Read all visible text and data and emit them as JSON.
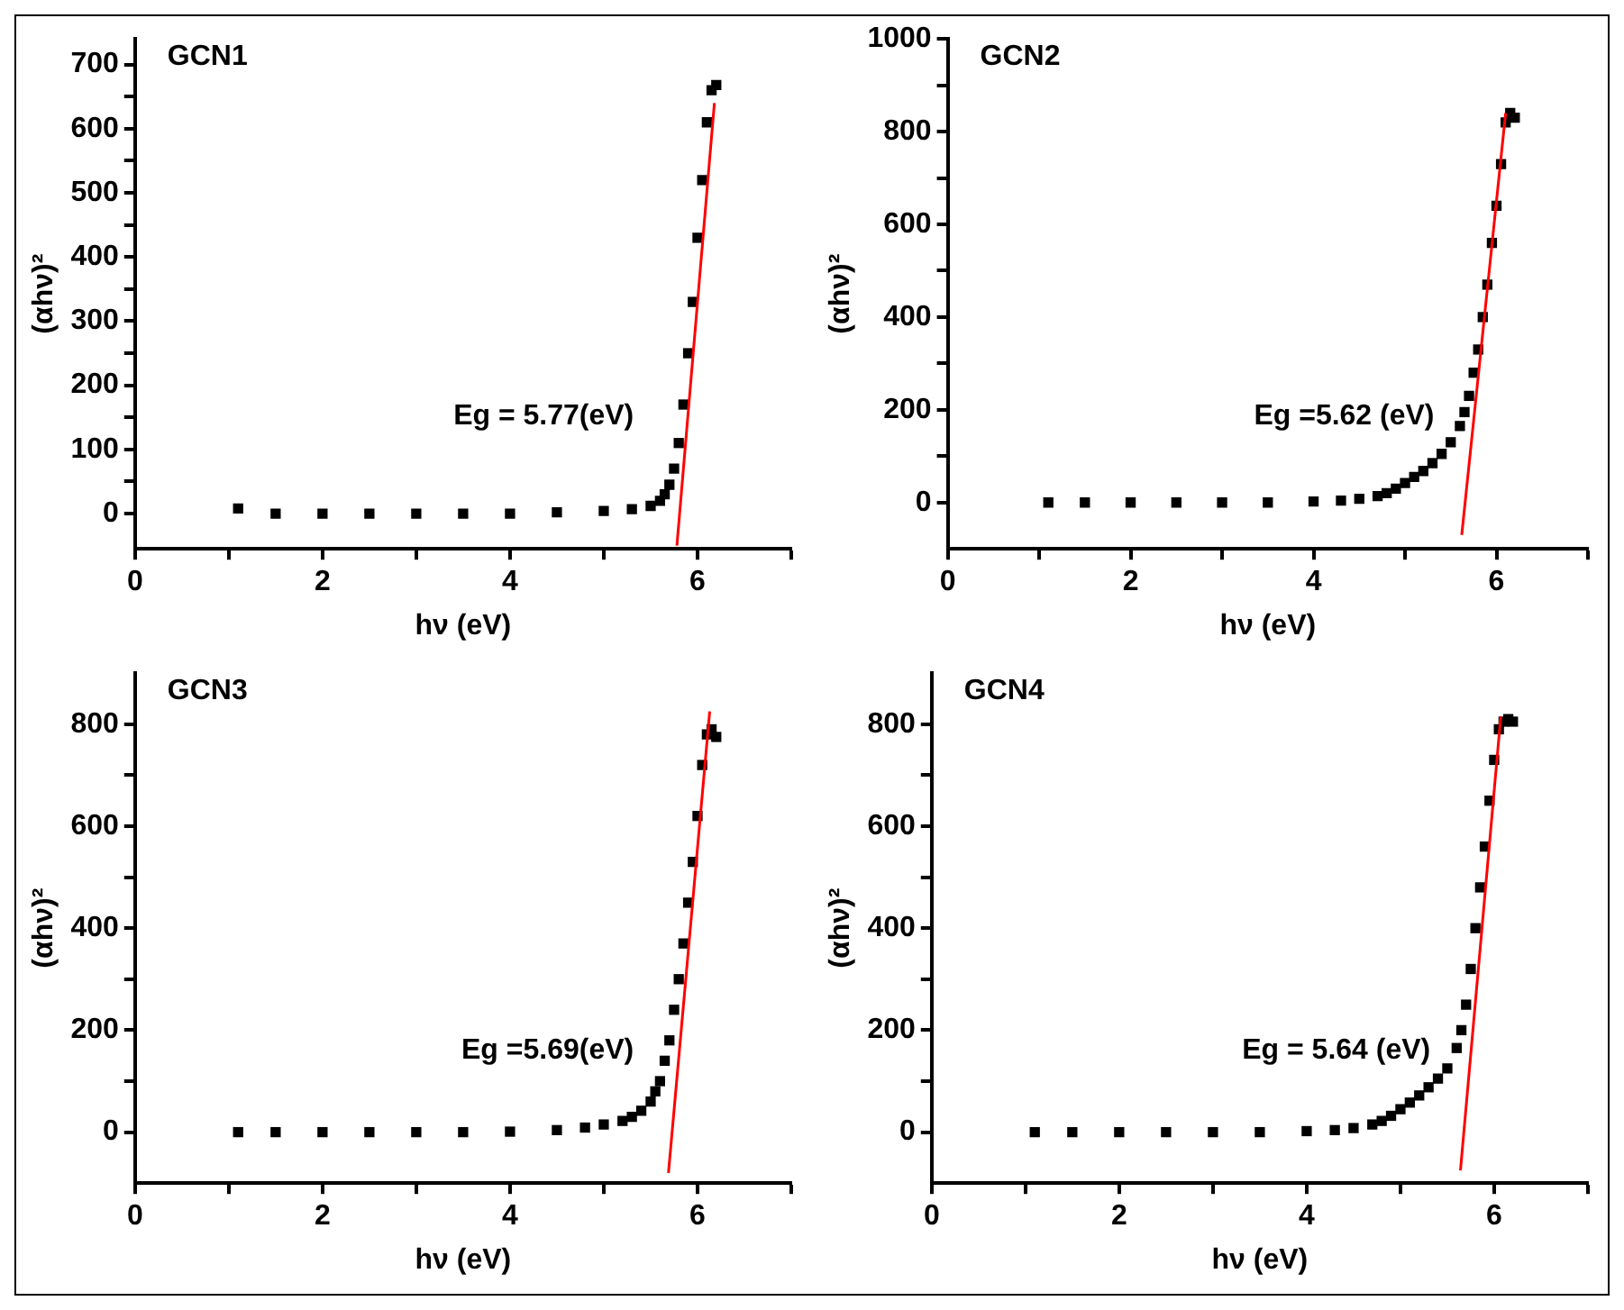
{
  "chart_data": [
    {
      "type": "scatter",
      "xlabel": "hν (eV)",
      "ylabel": "(αhν)²",
      "xlim": [
        0,
        7
      ],
      "ylim": [
        -55,
        740
      ],
      "xticks": [
        0,
        {
          "value": 1,
          "label": null
        },
        2,
        {
          "value": 3,
          "label": null
        },
        4,
        {
          "value": 5,
          "label": null
        },
        6,
        {
          "value": 7,
          "label": null
        }
      ],
      "yticks": [
        0,
        {
          "value": 50,
          "label": null
        },
        100,
        {
          "value": 150,
          "label": null
        },
        200,
        {
          "value": 250,
          "label": null
        },
        300,
        {
          "value": 350,
          "label": null
        },
        400,
        {
          "value": 450,
          "label": null
        },
        500,
        {
          "value": 550,
          "label": null
        },
        600,
        {
          "value": 650,
          "label": null
        },
        700
      ],
      "grid": false,
      "legend": false,
      "marker": "square",
      "annotations": [
        "GCN1",
        "Eg = 5.77(eV)"
      ],
      "series": [
        {
          "type": "scatter",
          "color": "#000000",
          "x": [
            1.1,
            1.5,
            2,
            2.5,
            3,
            3.5,
            4,
            4.5,
            5,
            5.3,
            5.5,
            5.6,
            5.65,
            5.7,
            5.75,
            5.8,
            5.85,
            5.9,
            5.95,
            6,
            6.05,
            6.1,
            6.15,
            6.2
          ],
          "values": [
            8,
            0,
            0,
            0,
            0,
            0,
            0,
            2,
            4,
            7,
            12,
            20,
            30,
            45,
            70,
            110,
            170,
            250,
            330,
            430,
            520,
            610,
            660,
            668
          ]
        },
        {
          "type": "line",
          "color": "#ff0000",
          "marker": "none",
          "x": [
            5.78,
            6.18
          ],
          "values": [
            -50,
            640
          ]
        }
      ]
    },
    {
      "type": "scatter",
      "xlabel": "hν (eV)",
      "ylabel": "(αhν)²",
      "xlim": [
        0,
        7
      ],
      "ylim": [
        -100,
        1000
      ],
      "xticks": [
        0,
        {
          "value": 1,
          "label": null
        },
        2,
        {
          "value": 3,
          "label": null
        },
        4,
        {
          "value": 5,
          "label": null
        },
        6,
        {
          "value": 7,
          "label": null
        }
      ],
      "yticks": [
        0,
        {
          "value": 100,
          "label": null
        },
        200,
        {
          "value": 300,
          "label": null
        },
        400,
        {
          "value": 500,
          "label": null
        },
        600,
        {
          "value": 700,
          "label": null
        },
        800,
        {
          "value": 900,
          "label": null
        },
        1000
      ],
      "grid": false,
      "legend": false,
      "marker": "square",
      "annotations": [
        "GCN2",
        "Eg =5.62 (eV)"
      ],
      "series": [
        {
          "type": "scatter",
          "color": "#000000",
          "x": [
            1.1,
            1.5,
            2,
            2.5,
            3,
            3.5,
            4,
            4.3,
            4.5,
            4.7,
            4.8,
            4.9,
            5,
            5.1,
            5.2,
            5.3,
            5.4,
            5.5,
            5.6,
            5.65,
            5.7,
            5.75,
            5.8,
            5.85,
            5.9,
            5.95,
            6,
            6.05,
            6.1,
            6.15,
            6.2
          ],
          "values": [
            0,
            0,
            0,
            0,
            0,
            0,
            2,
            4,
            8,
            14,
            20,
            30,
            42,
            55,
            68,
            85,
            105,
            130,
            165,
            195,
            230,
            280,
            330,
            400,
            470,
            560,
            640,
            730,
            820,
            840,
            830
          ]
        },
        {
          "type": "line",
          "color": "#ff0000",
          "marker": "none",
          "x": [
            5.62,
            6.1
          ],
          "values": [
            -70,
            840
          ]
        }
      ]
    },
    {
      "type": "scatter",
      "xlabel": "hν (eV)",
      "ylabel": "(αhν)²",
      "xlim": [
        0,
        7
      ],
      "ylim": [
        -100,
        900
      ],
      "xticks": [
        0,
        {
          "value": 1,
          "label": null
        },
        2,
        {
          "value": 3,
          "label": null
        },
        4,
        {
          "value": 5,
          "label": null
        },
        6,
        {
          "value": 7,
          "label": null
        }
      ],
      "yticks": [
        0,
        {
          "value": 100,
          "label": null
        },
        200,
        {
          "value": 300,
          "label": null
        },
        400,
        {
          "value": 500,
          "label": null
        },
        600,
        {
          "value": 700,
          "label": null
        },
        800
      ],
      "grid": false,
      "legend": false,
      "marker": "square",
      "annotations": [
        "GCN3",
        "Eg =5.69(eV)"
      ],
      "series": [
        {
          "type": "scatter",
          "color": "#000000",
          "x": [
            1.1,
            1.5,
            2,
            2.5,
            3,
            3.5,
            4,
            4.5,
            4.8,
            5,
            5.2,
            5.3,
            5.4,
            5.5,
            5.55,
            5.6,
            5.65,
            5.7,
            5.75,
            5.8,
            5.85,
            5.9,
            5.95,
            6,
            6.05,
            6.1,
            6.15,
            6.2
          ],
          "values": [
            0,
            0,
            0,
            0,
            0,
            0,
            1,
            4,
            9,
            15,
            22,
            30,
            42,
            60,
            80,
            100,
            140,
            180,
            240,
            300,
            370,
            450,
            530,
            620,
            720,
            780,
            790,
            775
          ]
        },
        {
          "type": "line",
          "color": "#ff0000",
          "marker": "none",
          "x": [
            5.69,
            6.13
          ],
          "values": [
            -80,
            825
          ]
        }
      ]
    },
    {
      "type": "scatter",
      "xlabel": "hν (eV)",
      "ylabel": "(αhν)²",
      "xlim": [
        0,
        7
      ],
      "ylim": [
        -100,
        900
      ],
      "xticks": [
        0,
        {
          "value": 1,
          "label": null
        },
        2,
        {
          "value": 3,
          "label": null
        },
        4,
        {
          "value": 5,
          "label": null
        },
        6,
        {
          "value": 7,
          "label": null
        }
      ],
      "yticks": [
        0,
        {
          "value": 100,
          "label": null
        },
        200,
        {
          "value": 300,
          "label": null
        },
        400,
        {
          "value": 500,
          "label": null
        },
        600,
        {
          "value": 700,
          "label": null
        },
        800
      ],
      "grid": false,
      "legend": false,
      "marker": "square",
      "annotations": [
        "GCN4",
        "Eg = 5.64 (eV)"
      ],
      "series": [
        {
          "type": "scatter",
          "color": "#000000",
          "x": [
            1.1,
            1.5,
            2,
            2.5,
            3,
            3.5,
            4,
            4.3,
            4.5,
            4.7,
            4.8,
            4.9,
            5,
            5.1,
            5.2,
            5.3,
            5.4,
            5.5,
            5.6,
            5.65,
            5.7,
            5.75,
            5.8,
            5.85,
            5.9,
            5.95,
            6,
            6.05,
            6.1,
            6.15,
            6.2
          ],
          "values": [
            0,
            0,
            0,
            0,
            0,
            0,
            2,
            4,
            8,
            15,
            22,
            32,
            45,
            58,
            72,
            88,
            105,
            125,
            165,
            200,
            250,
            320,
            400,
            480,
            560,
            650,
            730,
            790,
            805,
            810,
            805
          ]
        },
        {
          "type": "line",
          "color": "#ff0000",
          "marker": "none",
          "x": [
            5.64,
            6.07
          ],
          "values": [
            -75,
            815
          ]
        }
      ]
    }
  ]
}
